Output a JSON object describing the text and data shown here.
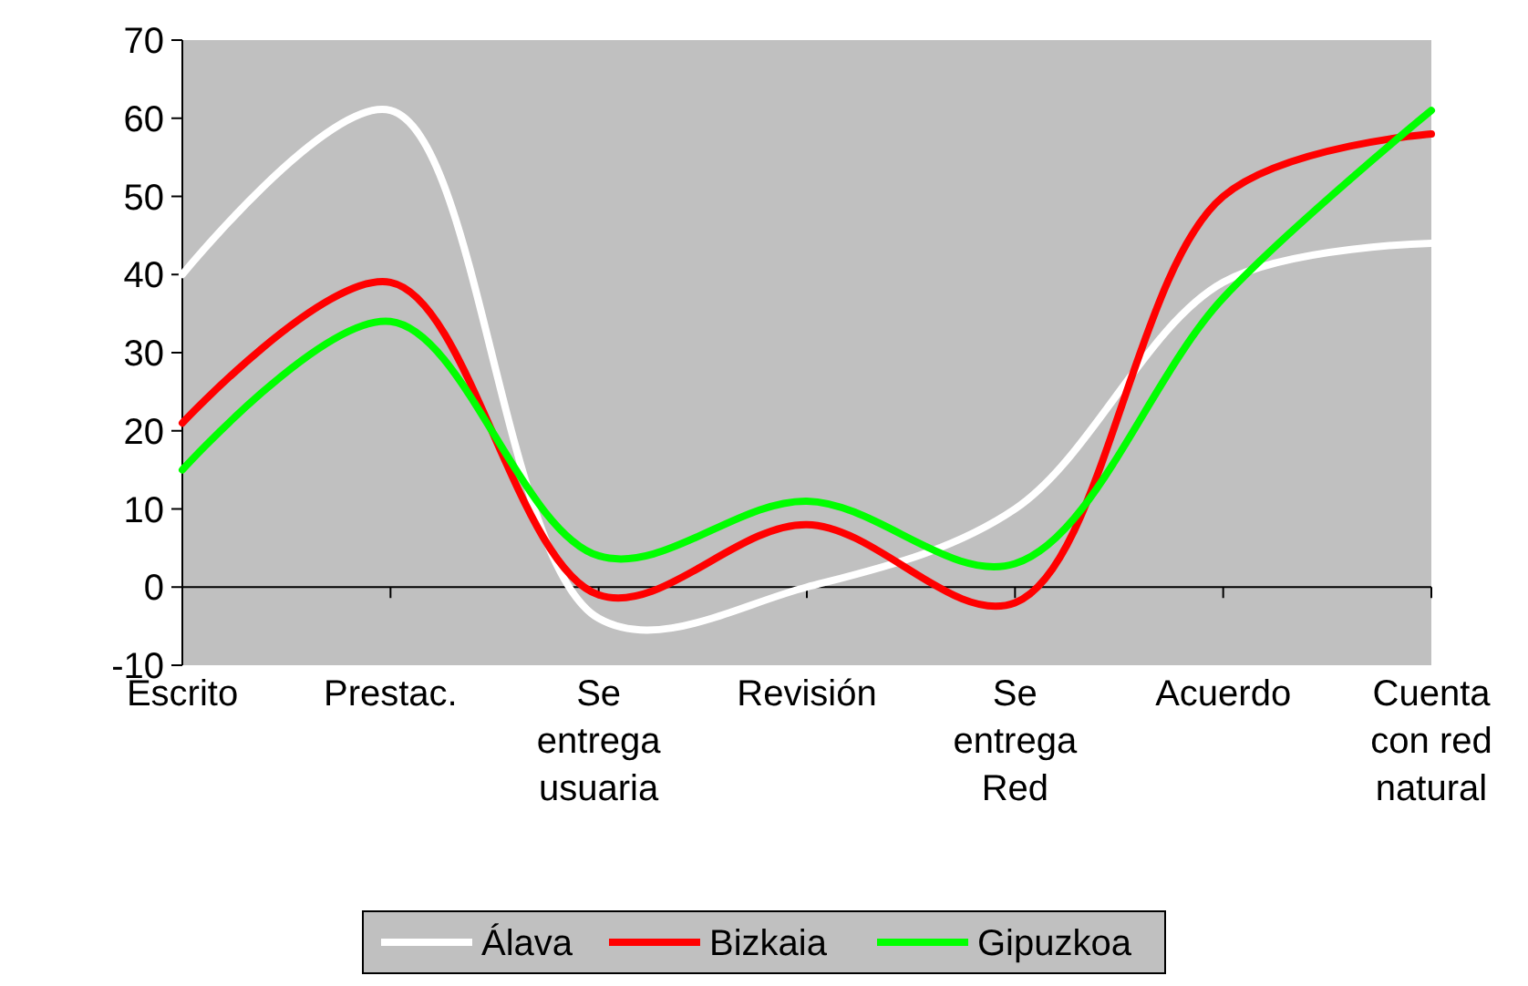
{
  "chart_data": {
    "type": "line",
    "categories": [
      "Escrito",
      "Prestac.",
      "Se entrega usuaria",
      "Revisión",
      "Se entrega Red",
      "Acuerdo",
      "Cuenta con red natural"
    ],
    "series": [
      {
        "name": "Álava",
        "color": "#ffffff",
        "values": [
          40,
          61,
          -4,
          0,
          10,
          39,
          44
        ]
      },
      {
        "name": "Bizkaia",
        "color": "#ff0000",
        "values": [
          21,
          39,
          -1,
          8,
          -2,
          50,
          58
        ]
      },
      {
        "name": "Gipuzkoa",
        "color": "#00ff00",
        "values": [
          15,
          34,
          4,
          11,
          3,
          37,
          61
        ]
      }
    ],
    "ylim": [
      -10,
      70
    ],
    "yticks": [
      -10,
      0,
      10,
      20,
      30,
      40,
      50,
      60,
      70
    ],
    "legend": "bottom",
    "marker": "none",
    "line_style": "solid"
  }
}
